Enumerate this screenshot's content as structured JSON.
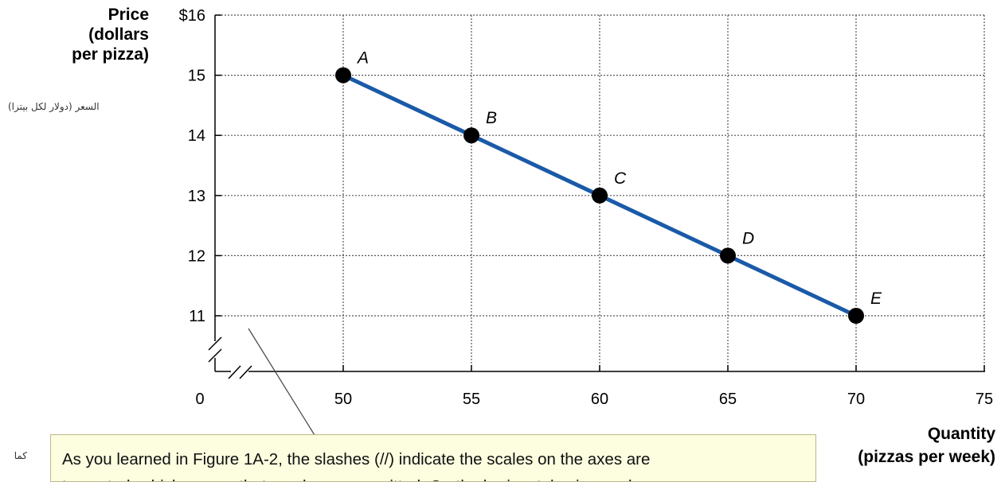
{
  "chart_data": {
    "type": "line",
    "ylabel": [
      "Price",
      "(dollars",
      "per pizza)"
    ],
    "ylabel_arabic": "السعر (دولار لكل بيتزا)",
    "xlabel": [
      "Quantity",
      "(pizzas per week)"
    ],
    "x_ticks": [
      "0",
      "50",
      "55",
      "60",
      "65",
      "70",
      "75"
    ],
    "y_ticks": [
      "$16",
      "15",
      "14",
      "13",
      "12",
      "11"
    ],
    "xlim": [
      45,
      75
    ],
    "ylim": [
      10,
      16
    ],
    "axis_break": true,
    "grid": true,
    "line_color": "#1a5aa8",
    "point_color": "#000000",
    "points": [
      {
        "label": "A",
        "x": 50,
        "y": 15
      },
      {
        "label": "B",
        "x": 55,
        "y": 14
      },
      {
        "label": "C",
        "x": 60,
        "y": 13
      },
      {
        "label": "D",
        "x": 65,
        "y": 12
      },
      {
        "label": "E",
        "x": 70,
        "y": 11
      }
    ]
  },
  "annotation": {
    "lines": [
      "As you learned in Figure 1A-2, the slashes (//) indicate the scales on the axes are",
      "truncated, which means that numbers are omitted. On the horizontal axis, numbers"
    ]
  },
  "side_text": {
    "arabic_partial": "كما"
  }
}
